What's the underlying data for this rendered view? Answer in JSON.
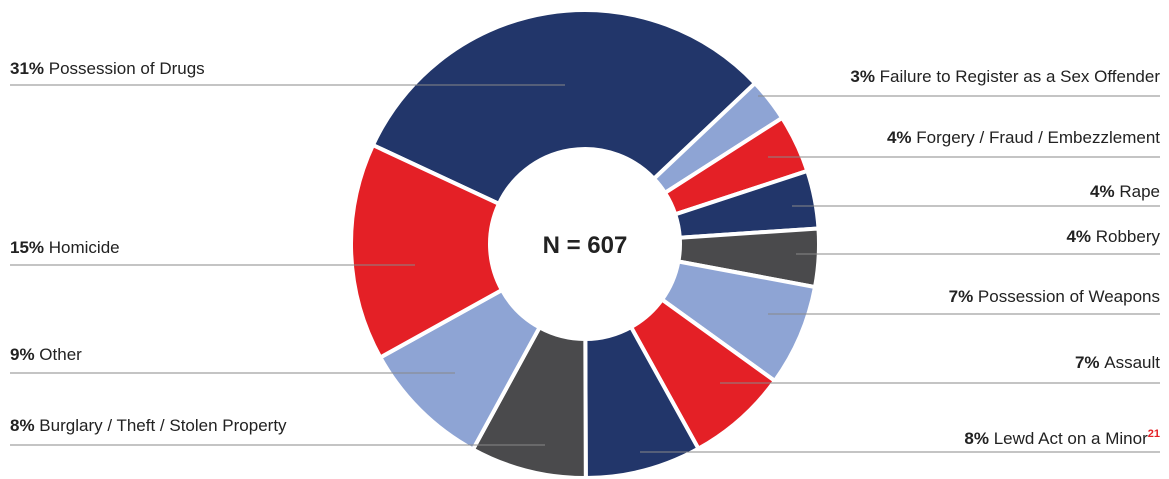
{
  "chart_data": {
    "type": "donut",
    "center_label": "N = 607",
    "categories": [
      "Possession of Drugs",
      "Failure to Register as a Sex Offender",
      "Forgery / Fraud / Embezzlement",
      "Rape",
      "Robbery",
      "Possession of Weapons",
      "Assault",
      "Lewd Act on a Minor",
      "Burglary / Theft / Stolen Property",
      "Other",
      "Homicide"
    ],
    "values": [
      31,
      3,
      4,
      4,
      4,
      7,
      7,
      8,
      8,
      9,
      15
    ],
    "value_labels": [
      "31%",
      "3%",
      "4%",
      "4%",
      "4%",
      "7%",
      "7%",
      "8%",
      "8%",
      "9%",
      "15%"
    ],
    "footnotes": [
      null,
      null,
      null,
      null,
      null,
      null,
      null,
      "21",
      null,
      null,
      null
    ],
    "colors": [
      "#22366a",
      "#8ea4d4",
      "#e42026",
      "#22366a",
      "#4a4a4c",
      "#8ea4d4",
      "#e42026",
      "#22366a",
      "#4a4a4c",
      "#8ea4d4",
      "#e42026"
    ]
  }
}
